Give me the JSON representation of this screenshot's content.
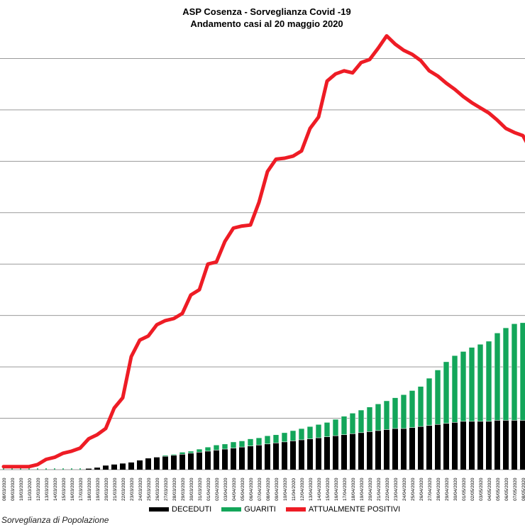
{
  "chart_data": {
    "type": "bar",
    "title": "ASP Cosenza - Sorveglianza Covid -19",
    "subtitle": "Andamento casi al 20 maggio 2020",
    "dates": [
      "08/03/2020",
      "09/03/2020",
      "10/03/2020",
      "11/03/2020",
      "12/03/2020",
      "13/03/2020",
      "14/03/2020",
      "15/03/2020",
      "16/03/2020",
      "17/03/2020",
      "18/03/2020",
      "19/03/2020",
      "20/03/2020",
      "21/03/2020",
      "22/03/2020",
      "23/03/2020",
      "24/03/2020",
      "25/03/2020",
      "26/03/2020",
      "27/03/2020",
      "28/03/2020",
      "29/03/2020",
      "30/03/2020",
      "31/03/2020",
      "01/04/2020",
      "02/04/2020",
      "03/04/2020",
      "04/04/2020",
      "05/04/2020",
      "06/04/2020",
      "07/04/2020",
      "08/04/2020",
      "09/04/2020",
      "10/04/2020",
      "11/04/2020",
      "12/04/2020",
      "13/04/2020",
      "14/04/2020",
      "15/04/2020",
      "16/04/2020",
      "17/04/2020",
      "18/04/2020",
      "19/04/2020",
      "20/04/2020",
      "21/04/2020",
      "22/04/2020",
      "23/04/2020",
      "24/04/2020",
      "25/04/2020",
      "26/04/2020",
      "27/04/2020",
      "28/04/2020",
      "29/04/2020",
      "30/04/2020",
      "01/05/2020",
      "02/05/2020",
      "03/05/2020",
      "04/05/2020",
      "05/05/2020",
      "06/05/2020",
      "07/05/2020",
      "08/05/2020",
      "09/05/2020"
    ],
    "series": [
      {
        "name": "DECEDUTI",
        "color": "#000000",
        "values": [
          0,
          0,
          0,
          0,
          0,
          0,
          0,
          0,
          0,
          0,
          1,
          2,
          4,
          5,
          6,
          7,
          9,
          11,
          12,
          13,
          14,
          15,
          16,
          17,
          18,
          19,
          20,
          21,
          22,
          23,
          24,
          25,
          26,
          27,
          28,
          29,
          30,
          31,
          32,
          33,
          34,
          35,
          36,
          37,
          38,
          39,
          40,
          40,
          41,
          42,
          43,
          44,
          45,
          46,
          47,
          47,
          47,
          47,
          48,
          48,
          48,
          48,
          48
        ]
      },
      {
        "name": "GUARITI",
        "color": "#13a65a",
        "values": [
          0,
          0,
          0,
          0,
          0,
          0,
          0,
          0,
          0,
          0,
          0,
          0,
          0,
          0,
          0,
          0,
          0,
          0,
          0,
          1,
          1,
          2,
          2,
          3,
          4,
          5,
          5,
          6,
          6,
          7,
          7,
          8,
          8,
          9,
          10,
          11,
          12,
          13,
          14,
          16,
          18,
          20,
          22,
          24,
          26,
          28,
          30,
          33,
          36,
          39,
          46,
          53,
          60,
          65,
          68,
          72,
          75,
          78,
          85,
          90,
          94,
          95,
          99
        ]
      },
      {
        "name": "ATTUALMENTE POSITIVI",
        "color": "#ee1c25",
        "values": [
          3,
          3,
          3,
          3,
          5,
          10,
          12,
          16,
          18,
          21,
          30,
          34,
          40,
          60,
          70,
          110,
          126,
          130,
          141,
          145,
          147,
          152,
          170,
          175,
          200,
          202,
          222,
          235,
          237,
          238,
          260,
          290,
          302,
          303,
          305,
          310,
          332,
          343,
          378,
          385,
          388,
          386,
          396,
          399,
          410,
          422,
          414,
          408,
          404,
          398,
          388,
          383,
          376,
          370,
          363,
          357,
          352,
          347,
          340,
          332,
          328,
          325,
          310
        ]
      }
    ],
    "ylim": [
      0,
      450
    ],
    "y_grid": [
      0,
      50,
      100,
      150,
      200,
      250,
      300,
      350,
      400
    ],
    "grid": true,
    "legend_position": "bottom",
    "legend": [
      "DECEDUTI",
      "GUARITI",
      "ATTUALMENTE POSITIVI"
    ]
  },
  "footer": {
    "text": "Sorveglianza di Popolazione"
  }
}
